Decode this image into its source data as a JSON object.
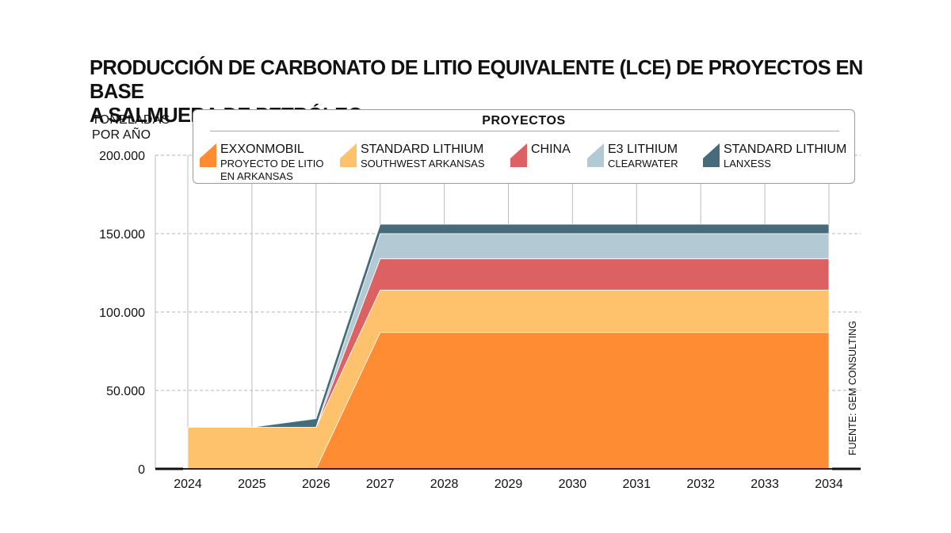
{
  "title_line1": "PRODUCCIÓN DE CARBONATO DE LITIO EQUIVALENTE (LCE) DE PROYECTOS EN BASE",
  "title_line2": "A SALMUERA DE PETRÓLEO",
  "ylabel_line1": "TONELADAS",
  "ylabel_line2": "POR AÑO",
  "legend": {
    "title": "PROYECTOS",
    "items": [
      {
        "name": "EXXONMOBIL",
        "sub1": "PROYECTO DE LITIO",
        "sub2": "EN ARKANSAS",
        "color": "#fd8c33"
      },
      {
        "name": "STANDARD LITHIUM",
        "sub1": "SOUTHWEST ARKANSAS",
        "sub2": "",
        "color": "#fec26c"
      },
      {
        "name": "CHINA",
        "sub1": "",
        "sub2": "",
        "color": "#db6163"
      },
      {
        "name": "E3 LITHIUM",
        "sub1": "CLEARWATER",
        "sub2": "",
        "color": "#b3c9d4"
      },
      {
        "name": "STANDARD LITHIUM",
        "sub1": "LANXESS",
        "sub2": "",
        "color": "#466b7a"
      }
    ]
  },
  "source": "FUENTE: GEM CONSULTING",
  "chart_data": {
    "type": "area",
    "stacked": true,
    "x": [
      2024,
      2025,
      2026,
      2027,
      2028,
      2029,
      2030,
      2031,
      2032,
      2033,
      2034
    ],
    "x_tick_labels": [
      "2024",
      "2025",
      "2026",
      "2027",
      "2028",
      "2029",
      "2030",
      "2031",
      "2032",
      "2033",
      "2034"
    ],
    "y_tick_values": [
      0,
      50000,
      100000,
      150000,
      200000
    ],
    "y_tick_labels": [
      "0",
      "50.000",
      "100.000",
      "150.000",
      "200.000"
    ],
    "ylim": [
      0,
      200000
    ],
    "ylabel": "TONELADAS POR AÑO",
    "grid": {
      "x": true,
      "y": true,
      "y_style": "dashed"
    },
    "legend_position": "top",
    "series": [
      {
        "name": "EXXONMOBIL",
        "color": "#fd8c33",
        "values": [
          0,
          0,
          0,
          87000,
          87000,
          87000,
          87000,
          87000,
          87000,
          87000,
          87000
        ]
      },
      {
        "name": "STANDARD LITHIUM SOUTHWEST ARKANSAS",
        "color": "#fec26c",
        "values": [
          26500,
          26500,
          26500,
          27000,
          27000,
          27000,
          27000,
          27000,
          27000,
          27000,
          27000
        ]
      },
      {
        "name": "CHINA",
        "color": "#db6163",
        "values": [
          0,
          0,
          0,
          20000,
          20000,
          20000,
          20000,
          20000,
          20000,
          20000,
          20000
        ]
      },
      {
        "name": "E3 LITHIUM CLEARWATER",
        "color": "#b3c9d4",
        "values": [
          0,
          0,
          0,
          16000,
          16000,
          16000,
          16000,
          16000,
          16000,
          16000,
          16000
        ]
      },
      {
        "name": "STANDARD LITHIUM LANXESS",
        "color": "#466b7a",
        "values": [
          0,
          0,
          5500,
          6000,
          6000,
          6000,
          6000,
          6000,
          6000,
          6000,
          6000
        ]
      }
    ]
  }
}
